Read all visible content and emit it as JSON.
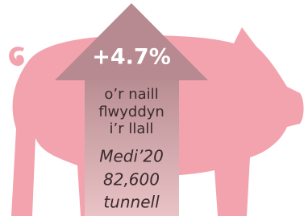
{
  "infographic": {
    "change": "+4.7%",
    "caption": [
      "o’r naill",
      "flwyddyn",
      "i’r llall"
    ],
    "period": "Medi’20",
    "amount": "82,600",
    "unit": "tunnell"
  }
}
